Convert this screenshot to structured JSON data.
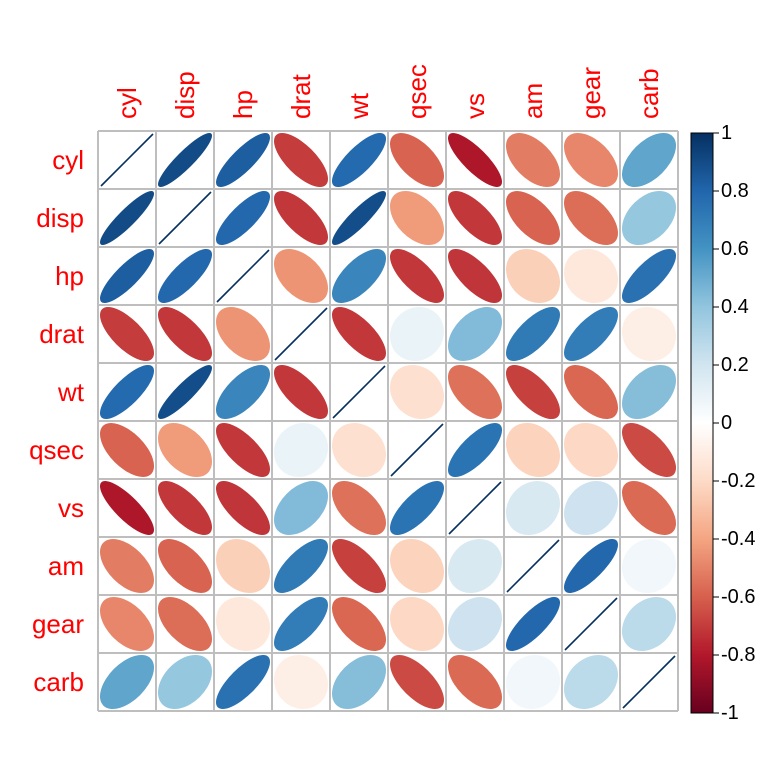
{
  "chart_data": {
    "type": "heatmap",
    "variables": [
      "cyl",
      "disp",
      "hp",
      "drat",
      "wt",
      "qsec",
      "vs",
      "am",
      "gear",
      "carb"
    ],
    "values": [
      [
        1.0,
        0.9,
        0.83,
        -0.7,
        0.78,
        -0.59,
        -0.81,
        -0.52,
        -0.49,
        0.53
      ],
      [
        0.9,
        1.0,
        0.79,
        -0.71,
        0.89,
        -0.43,
        -0.71,
        -0.59,
        -0.56,
        0.39
      ],
      [
        0.83,
        0.79,
        1.0,
        -0.45,
        0.66,
        -0.71,
        -0.72,
        -0.24,
        -0.13,
        0.75
      ],
      [
        -0.7,
        -0.71,
        -0.45,
        1.0,
        -0.71,
        0.09,
        0.44,
        0.71,
        0.7,
        -0.09
      ],
      [
        0.78,
        0.89,
        0.66,
        -0.71,
        1.0,
        -0.17,
        -0.55,
        -0.69,
        -0.58,
        0.43
      ],
      [
        -0.59,
        -0.43,
        -0.71,
        0.09,
        -0.17,
        1.0,
        0.74,
        -0.23,
        -0.21,
        -0.66
      ],
      [
        -0.81,
        -0.71,
        -0.72,
        0.44,
        -0.55,
        0.74,
        1.0,
        0.17,
        0.21,
        -0.57
      ],
      [
        -0.52,
        -0.59,
        -0.24,
        0.71,
        -0.69,
        -0.23,
        0.17,
        1.0,
        0.79,
        0.06
      ],
      [
        -0.49,
        -0.56,
        -0.13,
        0.7,
        -0.58,
        -0.21,
        0.21,
        0.79,
        1.0,
        0.27
      ],
      [
        0.53,
        0.39,
        0.75,
        -0.09,
        0.43,
        -0.66,
        -0.57,
        0.06,
        0.27,
        1.0
      ]
    ],
    "method": "ellipse",
    "legend": {
      "position": "right",
      "ticks": [
        "1",
        "0.8",
        "0.6",
        "0.4",
        "0.2",
        "0",
        "-0.2",
        "-0.4",
        "-0.6",
        "-0.8",
        "-1"
      ]
    },
    "colors": {
      "label": "#ff0000",
      "grid": "#bebebe",
      "scale": [
        "#67001f",
        "#b2182b",
        "#d6604d",
        "#f4a582",
        "#fddbc7",
        "#ffffff",
        "#d1e5f0",
        "#92c5de",
        "#4393c3",
        "#2166ac",
        "#053061"
      ]
    }
  }
}
